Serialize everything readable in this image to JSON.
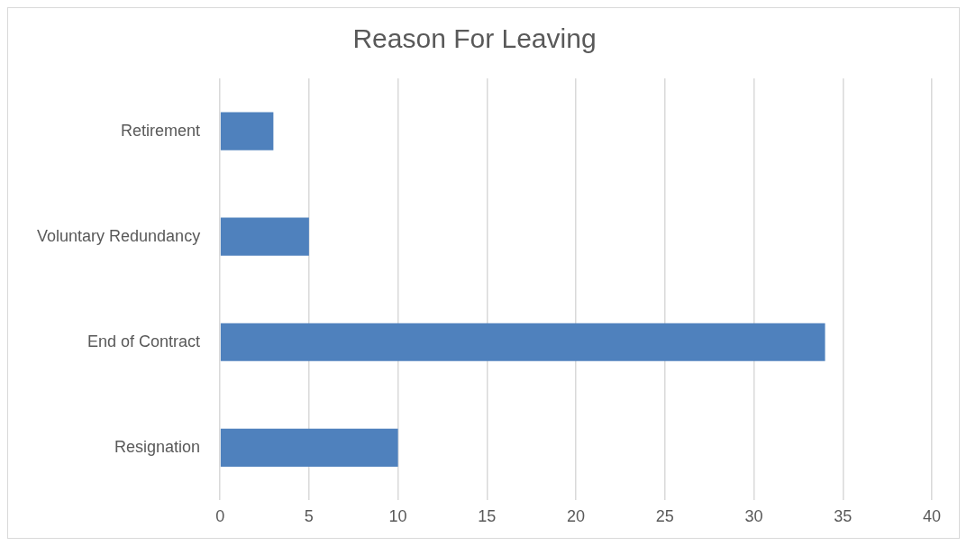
{
  "chart_data": {
    "type": "bar",
    "title": "Reason For Leaving",
    "orientation": "horizontal",
    "categories": [
      "Retirement",
      "Voluntary Redundancy",
      "End of Contract",
      "Resignation"
    ],
    "values": [
      3,
      5,
      34,
      10
    ],
    "color": "#4f81bd",
    "xlim": [
      0,
      40
    ],
    "xticks": [
      0,
      5,
      10,
      15,
      20,
      25,
      30,
      35,
      40
    ],
    "grid": "x",
    "legend": false
  }
}
